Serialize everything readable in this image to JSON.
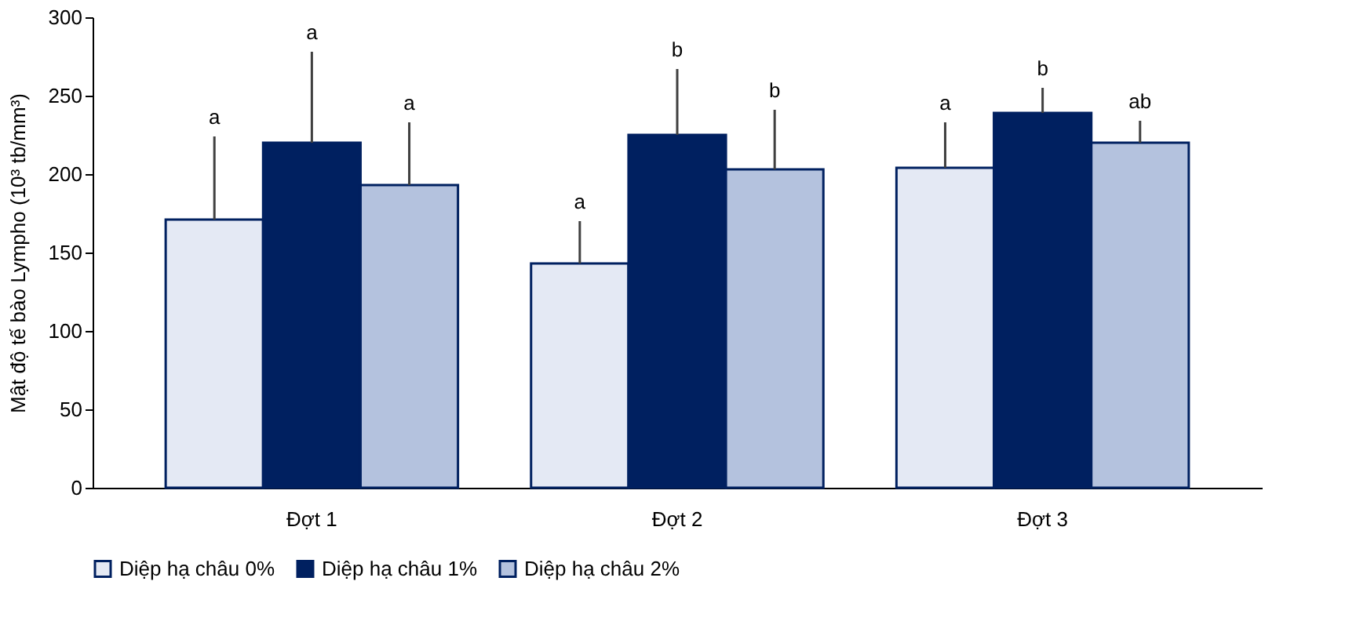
{
  "chart_data": {
    "type": "bar",
    "ylabel": "Mật độ tế bào Lympho (10³ tb/mm³)",
    "categories": [
      "Đợt 1",
      "Đợt 2",
      "Đợt 3"
    ],
    "series": [
      {
        "name": "Diệp hạ châu 0%",
        "color": "#e4e9f4",
        "values": [
          171,
          143,
          204
        ],
        "errors": [
          [
            171,
            224
          ],
          [
            143,
            170
          ],
          [
            204,
            233
          ]
        ]
      },
      {
        "name": "Diệp hạ châu 1%",
        "color": "#002060",
        "values": [
          220,
          225,
          239
        ],
        "errors": [
          [
            220,
            278
          ],
          [
            225,
            267
          ],
          [
            239,
            255
          ]
        ]
      },
      {
        "name": "Diệp hạ châu 2%",
        "color": "#b4c2de",
        "values": [
          193,
          203,
          220
        ],
        "errors": [
          [
            193,
            233
          ],
          [
            203,
            241
          ],
          [
            220,
            234
          ]
        ]
      }
    ],
    "ylim": [
      0,
      300
    ],
    "yticks": [
      0,
      50,
      100,
      150,
      200,
      250,
      300
    ],
    "grid": false,
    "legend": "bottom",
    "annotations": [
      "a",
      "a",
      "a",
      "a",
      "b",
      "b",
      "a",
      "b",
      "ab"
    ]
  }
}
